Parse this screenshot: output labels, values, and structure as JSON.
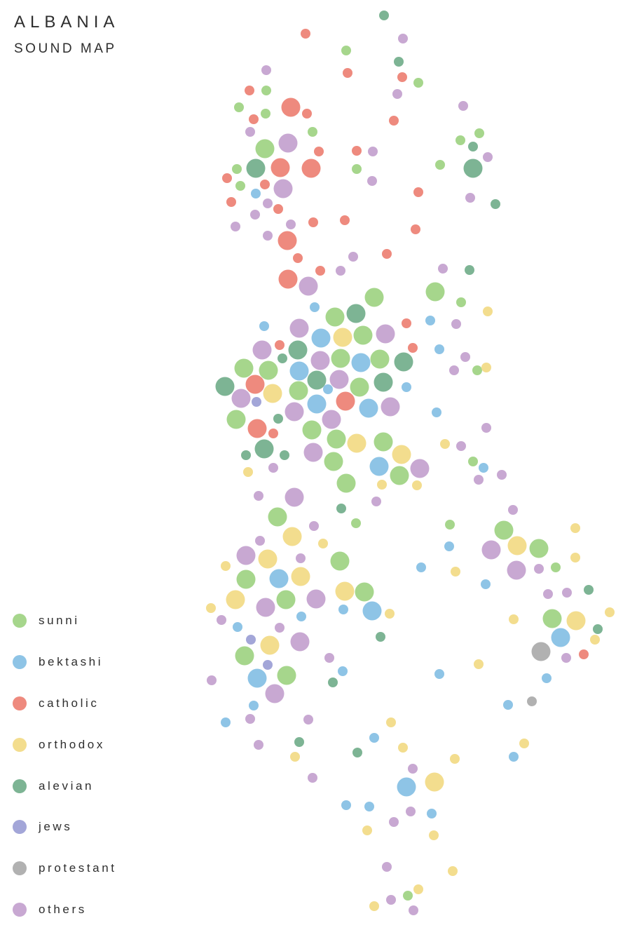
{
  "header": {
    "title": "ALBANIA",
    "subtitle": "SOUND MAP"
  },
  "legend": [
    {
      "key": "sunni",
      "label": "sunni",
      "color": "#a6d68c"
    },
    {
      "key": "bektashi",
      "label": "bektashi",
      "color": "#8ec4e6"
    },
    {
      "key": "catholic",
      "label": "catholic",
      "color": "#ee8a7e"
    },
    {
      "key": "orthodox",
      "label": "orthodox",
      "color": "#f3dd8e"
    },
    {
      "key": "alevian",
      "label": "alevian",
      "color": "#7db494"
    },
    {
      "key": "jews",
      "label": "jews",
      "color": "#a3a6d8"
    },
    {
      "key": "protestant",
      "label": "protestant",
      "color": "#b1b1b1"
    },
    {
      "key": "others",
      "label": "others",
      "color": "#c8a8d2"
    }
  ]
}
